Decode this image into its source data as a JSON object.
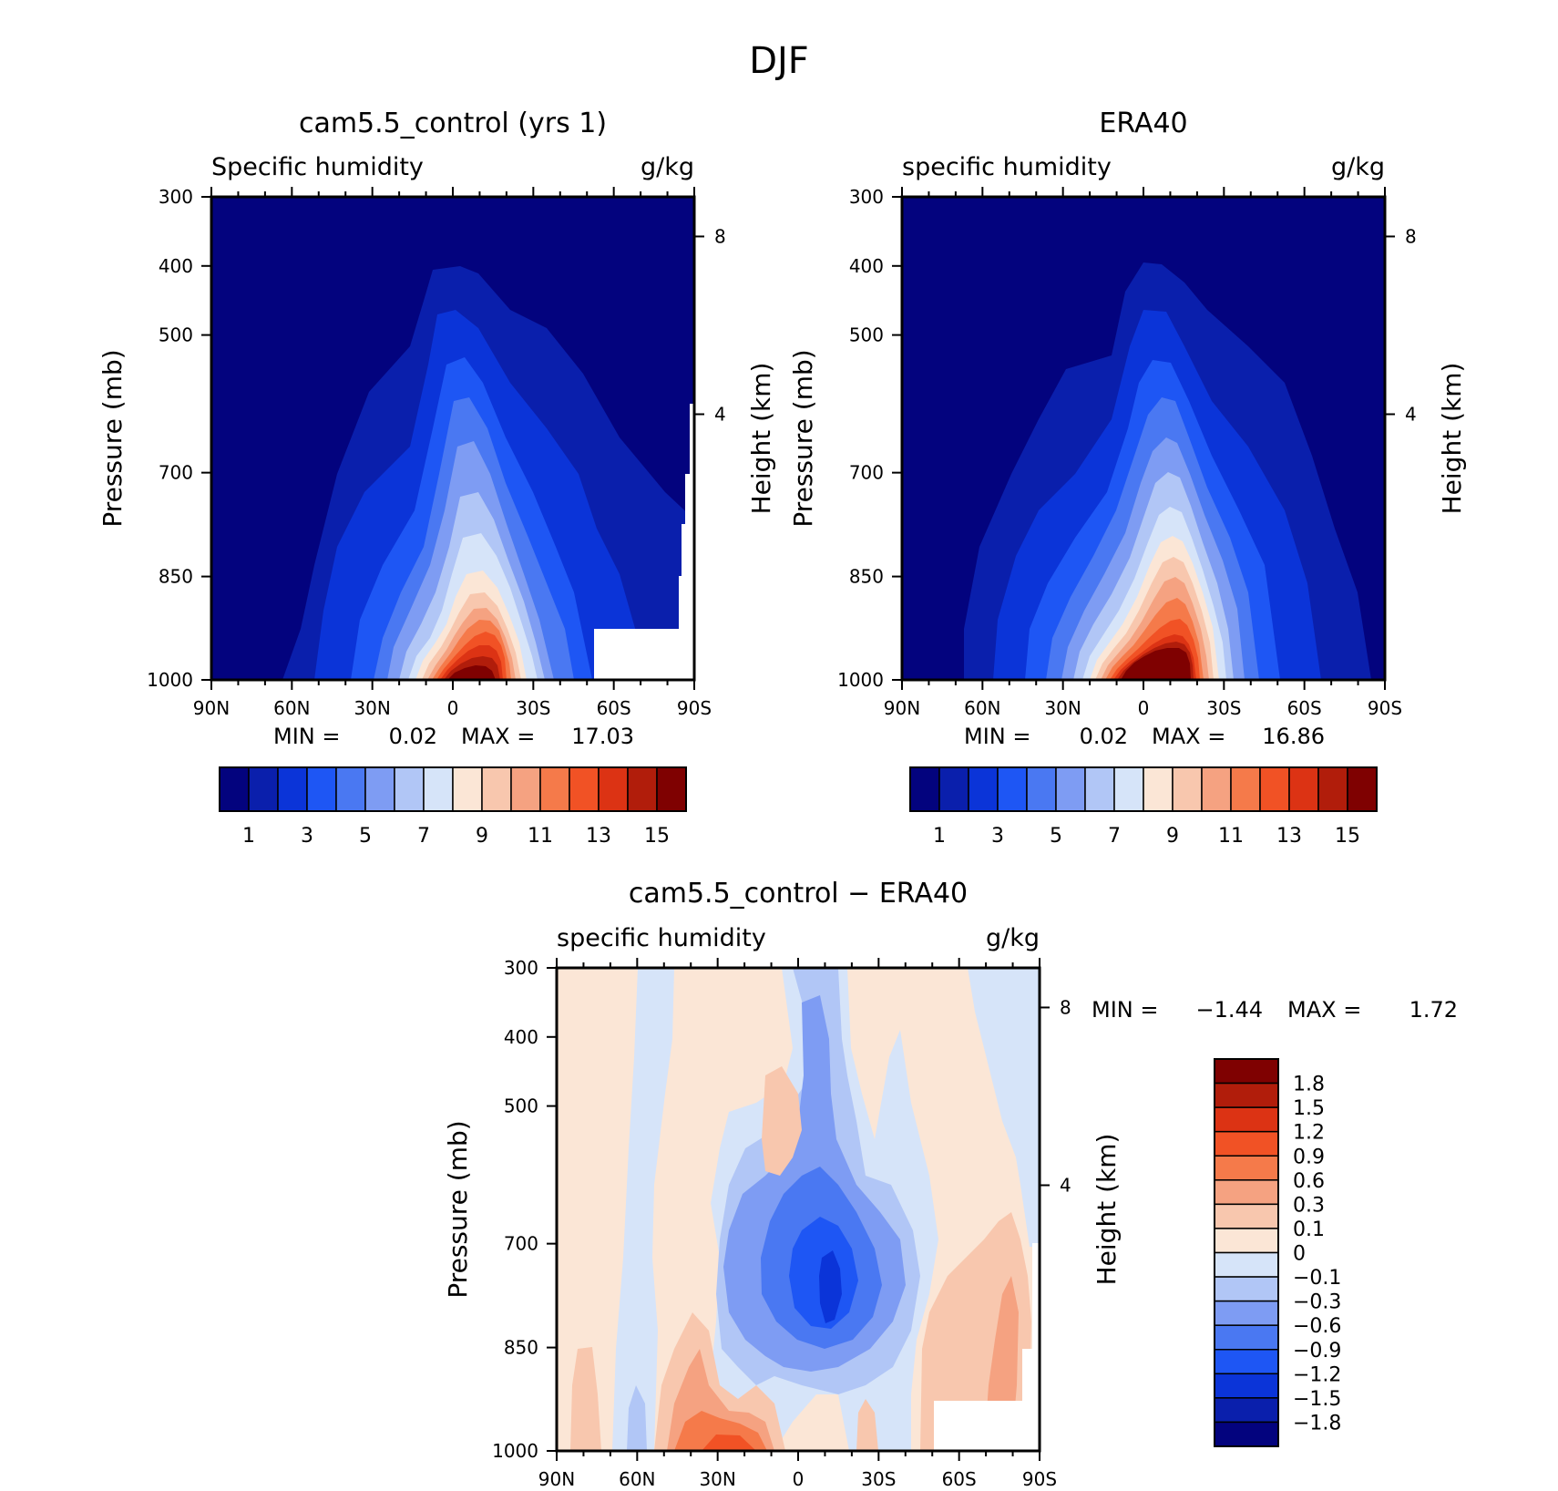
{
  "figure_title": "DJF",
  "panels": [
    {
      "title": "cam5.5_control (yrs 1)",
      "left_label": "Specific humidity",
      "right_label": "g/kg",
      "ylabel": "Pressure (mb)",
      "ylabel_right": "Height (km)",
      "min_label": "MIN =",
      "min_value": "0.02",
      "max_label": "MAX =",
      "max_value": "17.03"
    },
    {
      "title": "ERA40",
      "left_label": "specific humidity",
      "right_label": "g/kg",
      "ylabel": "Pressure (mb)",
      "ylabel_right": "Height (km)",
      "min_label": "MIN =",
      "min_value": "0.02",
      "max_label": "MAX =",
      "max_value": "16.86"
    },
    {
      "title": "cam5.5_control − ERA40",
      "left_label": "specific humidity",
      "right_label": "g/kg",
      "ylabel": "Pressure (mb)",
      "ylabel_right": "Height (km)",
      "min_label": "MIN =",
      "min_value": "−1.44",
      "max_label": "MAX =",
      "max_value": "1.72"
    }
  ],
  "chart_data": [
    {
      "type": "heatmap",
      "panel": "cam5.5_control (yrs 1)",
      "x_ticks": [
        "90N",
        "60N",
        "30N",
        "0",
        "30S",
        "60S",
        "90S"
      ],
      "y_ticks": [
        "300",
        "400",
        "500",
        "700",
        "850",
        "1000"
      ],
      "y_right_ticks": [
        "8",
        "4"
      ],
      "colorbar_levels": [
        1,
        2,
        3,
        4,
        5,
        6,
        7,
        8,
        9,
        10,
        11,
        12,
        13,
        14,
        15
      ],
      "colorbar_labels": [
        "1",
        "3",
        "5",
        "7",
        "9",
        "11",
        "13",
        "15"
      ],
      "colors": [
        "#03037e",
        "#0a1fac",
        "#0b34d8",
        "#1e56f4",
        "#4a78f2",
        "#7e9cf3",
        "#b1c6f6",
        "#d6e4f9",
        "#fbe6d6",
        "#f8c7ae",
        "#f5a281",
        "#f57a4a",
        "#f15225",
        "#dc3314",
        "#b11d0b",
        "#7f0101"
      ],
      "peak_value": 17.03,
      "peak_lat": 0,
      "peak_pressure": 1000
    },
    {
      "type": "heatmap",
      "panel": "ERA40",
      "x_ticks": [
        "90N",
        "60N",
        "30N",
        "0",
        "30S",
        "60S",
        "90S"
      ],
      "y_ticks": [
        "300",
        "400",
        "500",
        "700",
        "850",
        "1000"
      ],
      "y_right_ticks": [
        "8",
        "4"
      ],
      "colorbar_levels": [
        1,
        2,
        3,
        4,
        5,
        6,
        7,
        8,
        9,
        10,
        11,
        12,
        13,
        14,
        15
      ],
      "colorbar_labels": [
        "1",
        "3",
        "5",
        "7",
        "9",
        "11",
        "13",
        "15"
      ],
      "colors": [
        "#03037e",
        "#0a1fac",
        "#0b34d8",
        "#1e56f4",
        "#4a78f2",
        "#7e9cf3",
        "#b1c6f6",
        "#d6e4f9",
        "#fbe6d6",
        "#f8c7ae",
        "#f5a281",
        "#f57a4a",
        "#f15225",
        "#dc3314",
        "#b11d0b",
        "#7f0101"
      ],
      "peak_value": 16.86,
      "peak_lat": 0,
      "peak_pressure": 1000
    },
    {
      "type": "heatmap",
      "panel": "cam5.5_control − ERA40",
      "x_ticks": [
        "90N",
        "60N",
        "30N",
        "0",
        "30S",
        "60S",
        "90S"
      ],
      "y_ticks": [
        "300",
        "400",
        "500",
        "700",
        "850",
        "1000"
      ],
      "y_right_ticks": [
        "8",
        "4"
      ],
      "colorbar_labels": [
        "1.8",
        "1.5",
        "1.2",
        "0.9",
        "0.6",
        "0.3",
        "0.1",
        "0",
        "−0.1",
        "−0.3",
        "−0.6",
        "−0.9",
        "−1.2",
        "−1.5",
        "−1.8"
      ],
      "colors_top_to_bottom": [
        "#7f0101",
        "#b11d0b",
        "#dc3314",
        "#f15225",
        "#f57a4a",
        "#f5a281",
        "#f8c7ae",
        "#fbe6d6",
        "#d6e4f9",
        "#b1c6f6",
        "#7e9cf3",
        "#4a78f2",
        "#1e56f4",
        "#0b34d8",
        "#0a1fac",
        "#03037e"
      ]
    }
  ]
}
